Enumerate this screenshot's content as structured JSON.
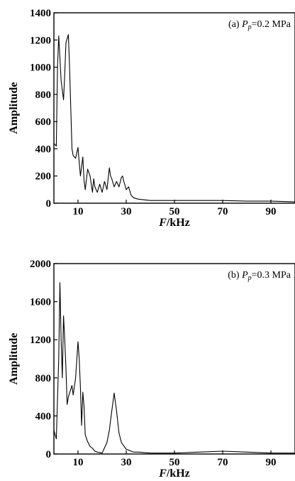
{
  "chart_data": [
    {
      "type": "line",
      "panel_label_prefix": "(a) ",
      "panel_label_var": "P",
      "panel_label_sub": "p",
      "panel_label_value": "=0.2 MPa",
      "xlabel_var": "F",
      "xlabel_unit": "/kHz",
      "ylabel": "Amplitude",
      "xlim": [
        0,
        100
      ],
      "ylim": [
        0,
        1400
      ],
      "xticks": [
        10,
        30,
        50,
        70,
        90
      ],
      "yticks": [
        0,
        200,
        400,
        600,
        800,
        1000,
        1200,
        1400
      ],
      "grid": false,
      "x": [
        0,
        1,
        1.5,
        2,
        3,
        4,
        4.5,
        5,
        6,
        6.5,
        7,
        7.5,
        8,
        9,
        10,
        10.5,
        11,
        12,
        12.5,
        13,
        14,
        15,
        16,
        16.5,
        17,
        18,
        19,
        20,
        21,
        22,
        23,
        23.5,
        24,
        25,
        26,
        27,
        28,
        28.5,
        29,
        30,
        31,
        32,
        33,
        35,
        40,
        50,
        60,
        70,
        80,
        90,
        100
      ],
      "y": [
        440,
        420,
        1000,
        1230,
        900,
        760,
        950,
        1180,
        1240,
        1000,
        700,
        400,
        350,
        330,
        410,
        300,
        200,
        340,
        170,
        100,
        250,
        200,
        80,
        180,
        120,
        80,
        140,
        80,
        160,
        100,
        260,
        200,
        180,
        120,
        160,
        120,
        190,
        200,
        160,
        100,
        120,
        60,
        40,
        30,
        20,
        20,
        20,
        20,
        15,
        15,
        10
      ]
    },
    {
      "type": "line",
      "panel_label_prefix": "(b) ",
      "panel_label_var": "P",
      "panel_label_sub": "p",
      "panel_label_value": "=0.3 MPa",
      "xlabel_var": "F",
      "xlabel_unit": "/kHz",
      "ylabel": "Amplitude",
      "xlim": [
        0,
        100
      ],
      "ylim": [
        0,
        2000
      ],
      "xticks": [
        10,
        30,
        50,
        70,
        90
      ],
      "yticks": [
        0,
        400,
        800,
        1200,
        1600,
        2000
      ],
      "grid": false,
      "x": [
        0,
        1,
        2,
        2.5,
        3,
        3.5,
        4,
        4.5,
        5,
        5.5,
        6,
        7,
        7.5,
        8,
        9,
        10,
        10.5,
        11,
        11.5,
        12,
        12.5,
        13,
        14,
        15,
        16,
        17,
        18,
        20,
        22,
        23,
        24,
        25,
        26,
        27,
        28,
        30,
        33,
        35,
        40,
        50,
        60,
        70,
        80,
        90,
        100
      ],
      "y": [
        250,
        160,
        1000,
        1800,
        1200,
        800,
        1450,
        1200,
        900,
        520,
        600,
        680,
        720,
        620,
        800,
        1180,
        1000,
        700,
        300,
        650,
        500,
        200,
        130,
        80,
        60,
        30,
        20,
        10,
        120,
        250,
        450,
        640,
        450,
        220,
        120,
        50,
        20,
        20,
        10,
        10,
        20,
        30,
        20,
        10,
        10
      ]
    }
  ]
}
